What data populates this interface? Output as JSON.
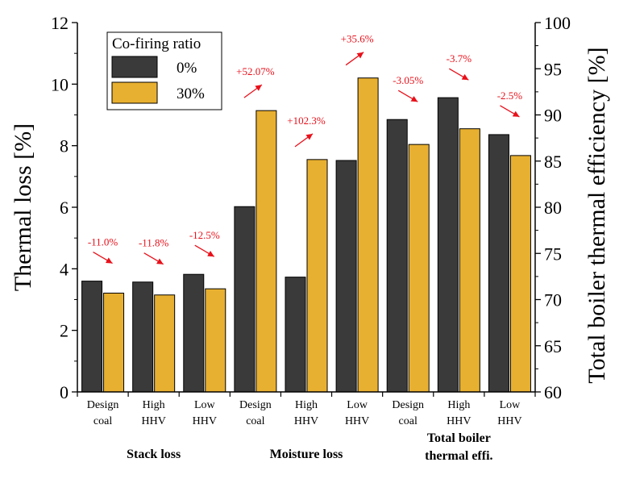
{
  "chart_data": {
    "type": "bar",
    "categories": [
      [
        "Design",
        "coal"
      ],
      [
        "High",
        "HHV"
      ],
      [
        "Low",
        "HHV"
      ],
      [
        "Design",
        "coal"
      ],
      [
        "High",
        "HHV"
      ],
      [
        "Low",
        "HHV"
      ],
      [
        "Design",
        "coal"
      ],
      [
        "High",
        "HHV"
      ],
      [
        "Low",
        "HHV"
      ]
    ],
    "groups": [
      {
        "lines": [
          "Stack loss"
        ],
        "span": [
          0,
          2
        ]
      },
      {
        "lines": [
          "Moisture loss"
        ],
        "span": [
          3,
          5
        ]
      },
      {
        "lines": [
          "Total boiler",
          "thermal effi."
        ],
        "span": [
          6,
          8
        ]
      }
    ],
    "legend_title": "Co-firing ratio",
    "series": [
      {
        "name": "0%",
        "color": "#3a3a3a",
        "values": [
          3.6,
          3.57,
          3.82,
          6.02,
          3.73,
          7.52,
          8.85,
          9.56,
          8.36
        ]
      },
      {
        "name": "30%",
        "color": "#e8b030",
        "values": [
          3.21,
          3.15,
          3.35,
          9.14,
          7.55,
          10.2,
          8.04,
          8.55,
          7.68
        ]
      }
    ],
    "annotations": [
      "-11.0%",
      "-11.8%",
      "-12.5%",
      "+52.07%",
      "+102.3%",
      "+35.6%",
      "-3.05%",
      "-3.7%",
      "-2.5%"
    ],
    "annotation_color": "#e8101a",
    "ylabel": "Thermal loss [%]",
    "ylim": [
      0,
      12
    ],
    "yticks": [
      "0",
      "2",
      "4",
      "6",
      "8",
      "10",
      "12"
    ],
    "y2label": "Total boiler thermal efficiency [%]",
    "y2lim": [
      60,
      100
    ],
    "y2ticks": [
      "60",
      "65",
      "70",
      "75",
      "80",
      "85",
      "90",
      "95",
      "100"
    ],
    "legend_position": "top-left"
  }
}
